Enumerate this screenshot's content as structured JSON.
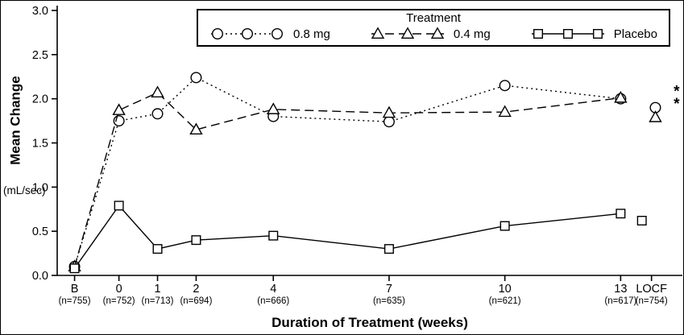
{
  "figure": {
    "background": "#ffffff",
    "ink": "#000000"
  },
  "chart_data": {
    "type": "line",
    "title": "",
    "xlabel": "Duration of Treatment (weeks)",
    "ylabel": "Mean Change",
    "ylabel_units": "(mL/sec)",
    "ylim": [
      0.0,
      3.0
    ],
    "yticks": [
      "0.0",
      "0.5",
      "1.0",
      "1.5",
      "2.0",
      "2.5",
      "3.0"
    ],
    "grid": false,
    "legend": {
      "title": "Treatment",
      "position": "top-center"
    },
    "x_ticks": [
      {
        "label": "B",
        "n": "(n=755)",
        "pos": -1.15
      },
      {
        "label": "0",
        "n": "(n=752)",
        "pos": 0
      },
      {
        "label": "1",
        "n": "(n=713)",
        "pos": 1
      },
      {
        "label": "2",
        "n": "(n=694)",
        "pos": 2
      },
      {
        "label": "4",
        "n": "(n=666)",
        "pos": 4
      },
      {
        "label": "7",
        "n": "(n=635)",
        "pos": 7
      },
      {
        "label": "10",
        "n": "(n=621)",
        "pos": 10
      },
      {
        "label": "13",
        "n": "(n=617)",
        "pos": 13
      },
      {
        "label": "LOCF",
        "n": "(n=754)",
        "pos": 13.8
      }
    ],
    "series": [
      {
        "name": "0.8 mg",
        "marker": "circle",
        "line_style": "dotted",
        "x": [
          -1.15,
          0,
          1,
          2,
          4,
          7,
          10,
          13
        ],
        "values": [
          0.1,
          1.75,
          1.83,
          2.24,
          1.8,
          1.74,
          2.15,
          2.0
        ],
        "locf": {
          "x": 13.9,
          "value": 1.9
        }
      },
      {
        "name": "0.4 mg",
        "marker": "triangle",
        "line_style": "dashed",
        "x": [
          -1.15,
          0,
          1,
          2,
          4,
          7,
          10,
          13
        ],
        "values": [
          0.1,
          1.87,
          2.07,
          1.65,
          1.88,
          1.84,
          1.85,
          2.01
        ],
        "locf": {
          "x": 13.9,
          "value": 1.79
        }
      },
      {
        "name": "Placebo",
        "marker": "square",
        "line_style": "solid",
        "x": [
          -1.15,
          0,
          1,
          2,
          4,
          7,
          10,
          13
        ],
        "values": [
          0.08,
          0.79,
          0.3,
          0.4,
          0.45,
          0.3,
          0.56,
          0.7
        ],
        "locf": {
          "x": 13.55,
          "value": 0.62
        }
      }
    ],
    "annotations": [
      {
        "text": "*",
        "x": 14.45,
        "y": 2.1
      },
      {
        "text": "*",
        "x": 14.45,
        "y": 1.96
      }
    ]
  }
}
